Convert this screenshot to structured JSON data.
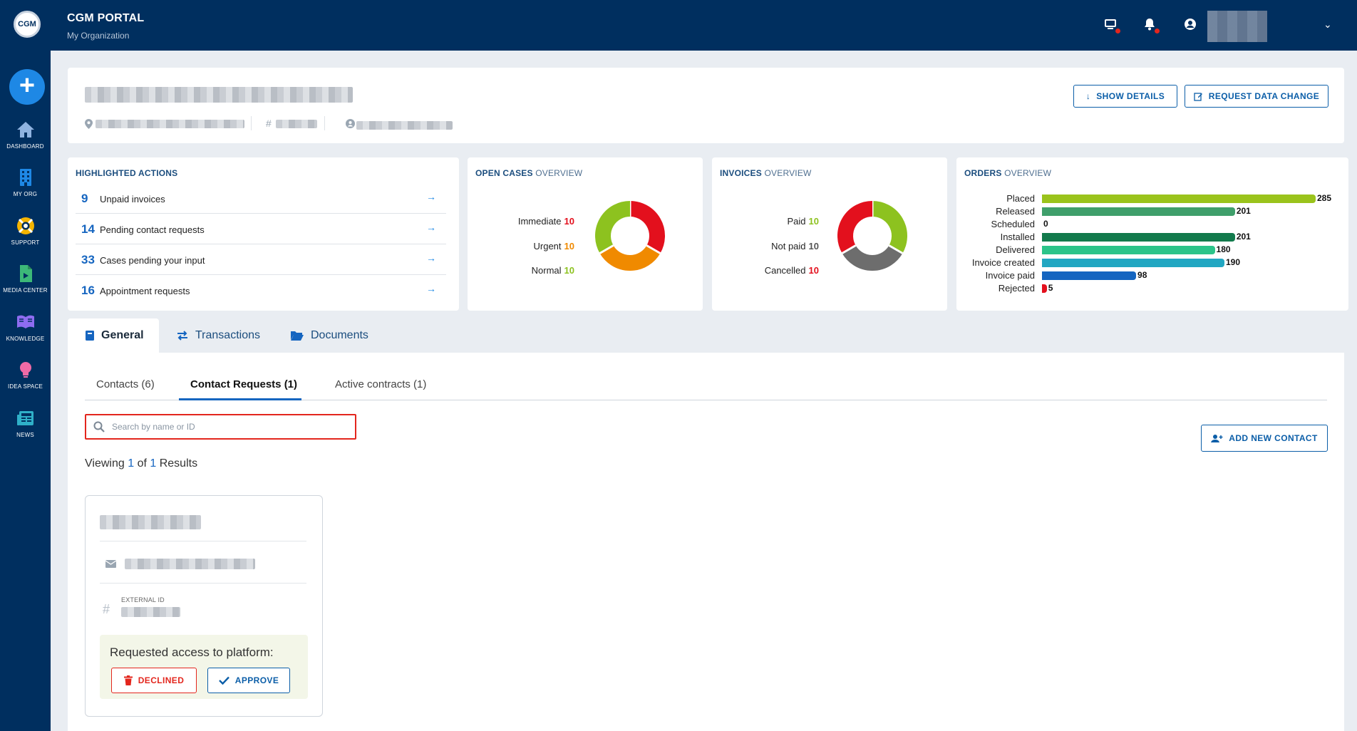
{
  "topbar": {
    "logo": "CGM",
    "brand": "CGM PORTAL",
    "organization": "My Organization",
    "icons": [
      "monitor-notification-icon",
      "bell-icon",
      "user-icon",
      "chevron-down-icon"
    ]
  },
  "sidebar": {
    "add_icon": "plus-icon",
    "items": [
      {
        "label": "DASHBOARD",
        "icon": "home-icon",
        "color": "#8fb3e0"
      },
      {
        "label": "MY ORG",
        "icon": "building-icon",
        "color": "#1e88e5"
      },
      {
        "label": "SUPPORT",
        "icon": "lifebuoy-icon",
        "color": "#f5b400"
      },
      {
        "label": "MEDIA CENTER",
        "icon": "media-file-icon",
        "color": "#3cb878"
      },
      {
        "label": "KNOWLEDGE",
        "icon": "book-icon",
        "color": "#8e6cf0"
      },
      {
        "label": "IDEA SPACE",
        "icon": "lightbulb-icon",
        "color": "#f06aa6"
      },
      {
        "label": "NEWS",
        "icon": "newspaper-icon",
        "color": "#2fb0c8"
      }
    ]
  },
  "header": {
    "show_details": "SHOW DETAILS",
    "request_change": "REQUEST DATA CHANGE"
  },
  "highlighted": {
    "title": "HIGHLIGHTED ACTIONS",
    "items": [
      {
        "count": "9",
        "label": "Unpaid invoices"
      },
      {
        "count": "14",
        "label": "Pending contact requests"
      },
      {
        "count": "33",
        "label": "Cases pending your input"
      },
      {
        "count": "16",
        "label": "Appointment requests"
      }
    ]
  },
  "open_cases": {
    "title_bold": "OPEN CASES",
    "title_light": "OVERVIEW",
    "legend": [
      {
        "label": "Immediate",
        "value": "10",
        "color": "#e3101d"
      },
      {
        "label": "Urgent",
        "value": "10",
        "color": "#f08a00"
      },
      {
        "label": "Normal",
        "value": "10",
        "color": "#8dc21f"
      }
    ],
    "chart_data": {
      "type": "pie",
      "labels": [
        "Immediate",
        "Urgent",
        "Normal"
      ],
      "values": [
        10,
        10,
        10
      ],
      "colors": [
        "#e3101d",
        "#f08a00",
        "#8dc21f"
      ]
    }
  },
  "invoices": {
    "title_bold": "INVOICES",
    "title_light": "OVERVIEW",
    "legend": [
      {
        "label": "Paid",
        "value": "10",
        "color": "#8dc21f"
      },
      {
        "label": "Not paid",
        "value": "10",
        "color": "#555555"
      },
      {
        "label": "Cancelled",
        "value": "10",
        "color": "#e3101d"
      }
    ],
    "chart_data": {
      "type": "pie",
      "labels": [
        "Paid",
        "Not paid",
        "Cancelled"
      ],
      "values": [
        10,
        10,
        10
      ],
      "colors": [
        "#8dc21f",
        "#6d6d6d",
        "#e3101d"
      ]
    }
  },
  "orders": {
    "title_bold": "ORDERS",
    "title_light": "OVERVIEW",
    "chart_data": {
      "type": "bar",
      "orientation": "horizontal",
      "categories": [
        "Placed",
        "Released",
        "Scheduled",
        "Installed",
        "Delivered",
        "Invoice created",
        "Invoice paid",
        "Rejected"
      ],
      "values": [
        285,
        201,
        0,
        201,
        180,
        190,
        98,
        5
      ],
      "colors": [
        "#9ac31c",
        "#3f9f6b",
        "#2e8b57",
        "#127a4c",
        "#2bc48a",
        "#22a7c2",
        "#1565c0",
        "#e3101d"
      ],
      "xlim": [
        0,
        285
      ]
    }
  },
  "tabs": [
    {
      "label": "General",
      "icon": "book-icon"
    },
    {
      "label": "Transactions",
      "icon": "transfer-icon"
    },
    {
      "label": "Documents",
      "icon": "folder-open-icon"
    }
  ],
  "subtabs": [
    "Contacts (6)",
    "Contact Requests (1)",
    "Active contracts (1)"
  ],
  "search": {
    "placeholder": "Search by name or ID",
    "value": ""
  },
  "add_contact": "ADD NEW CONTACT",
  "viewing": {
    "prefix": "Viewing",
    "shown": "1",
    "of": "of",
    "total": "1",
    "suffix": "Results"
  },
  "contact_card": {
    "external_id_label": "EXTERNAL ID",
    "access_text": "Requested access to platform:",
    "declined": "DECLINED",
    "approve": "APPROVE"
  }
}
